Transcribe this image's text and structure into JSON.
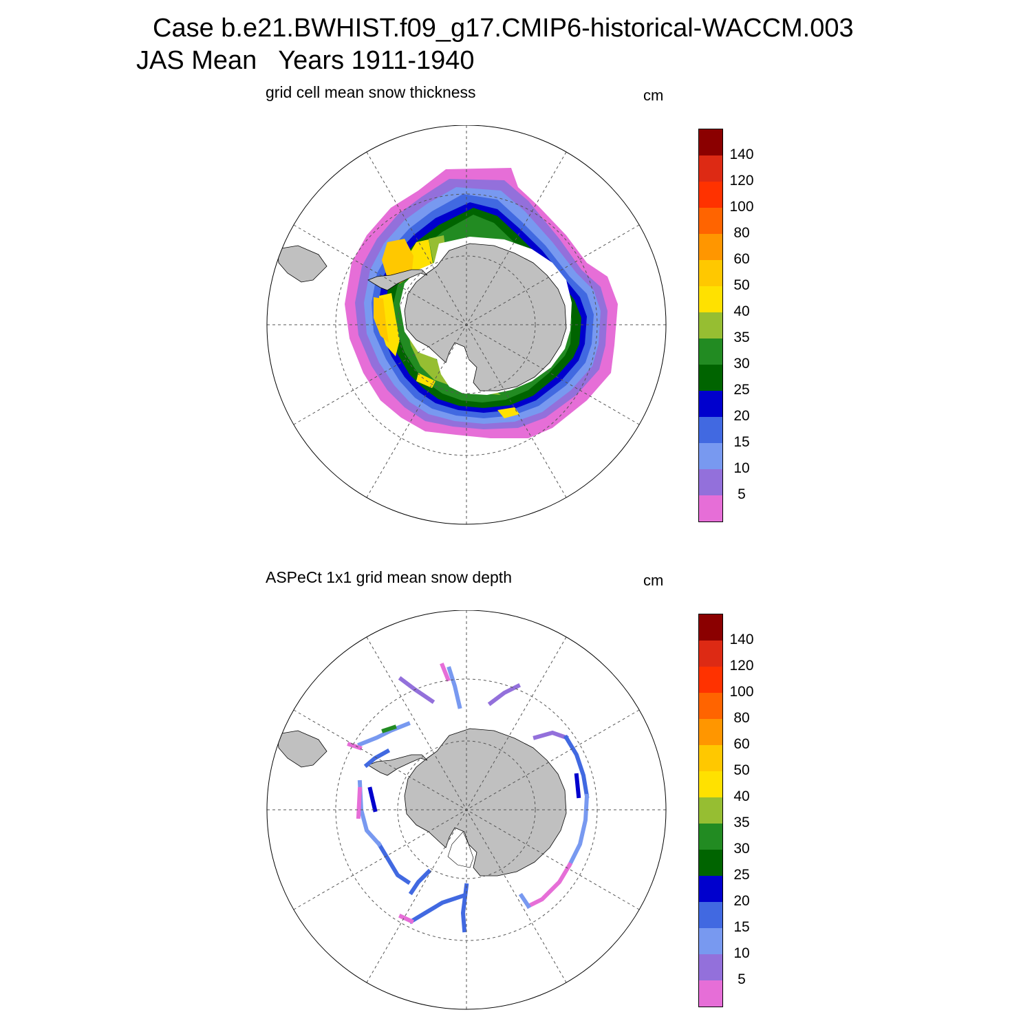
{
  "header": {
    "title": "Case b.e21.BWHIST.f09_g17.CMIP6-historical-WACCM.003",
    "subtitle": "JAS Mean   Years 1911-1940"
  },
  "panels": [
    {
      "title": "grid cell mean snow thickness",
      "units": "cm",
      "field": "model snow thickness (continuous ice-pack field)"
    },
    {
      "title": "ASPeCt 1x1 grid mean snow depth",
      "units": "cm",
      "field": "ship-based observation tracks"
    }
  ],
  "colorbar": {
    "labels": [
      "140",
      "120",
      "100",
      "80",
      "60",
      "50",
      "40",
      "35",
      "30",
      "25",
      "20",
      "15",
      "10",
      "5"
    ],
    "colors": [
      "#8b0000",
      "#dd2a14",
      "#ff3200",
      "#ff6400",
      "#ff9600",
      "#ffc800",
      "#ffe100",
      "#96be32",
      "#228b22",
      "#006400",
      "#0000cd",
      "#4169e1",
      "#7899f0",
      "#9370db",
      "#e66ed7"
    ]
  },
  "map_style": {
    "land_color": "#c0c0c0",
    "ocean_color": "#ffffff",
    "grid_color": "#555555",
    "projection": "south polar stereographic"
  }
}
